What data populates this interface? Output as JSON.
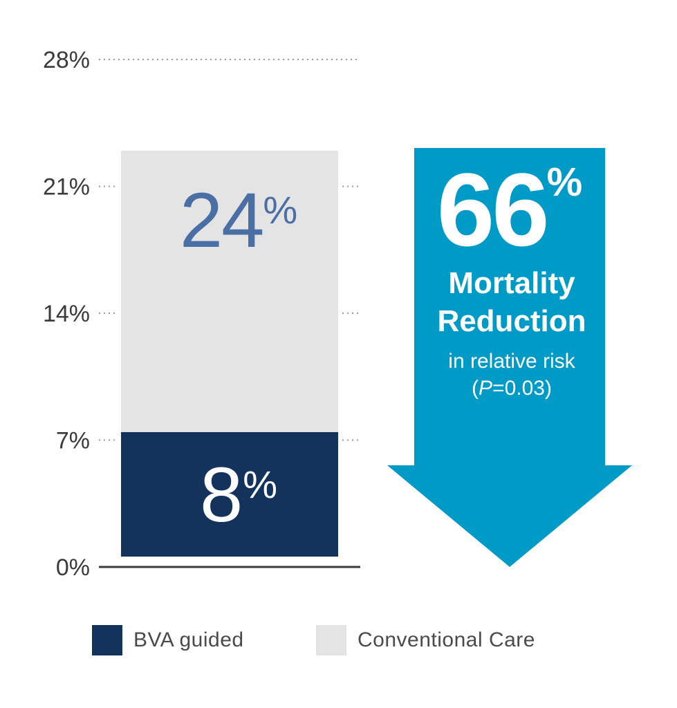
{
  "chart_data": {
    "type": "bar",
    "stacked": true,
    "yticks": [
      "0%",
      "7%",
      "14%",
      "21%",
      "28%"
    ],
    "ytick_values": [
      0,
      7,
      14,
      21,
      28
    ],
    "ylim": [
      0,
      28
    ],
    "grid": "dotted",
    "series": [
      {
        "name": "Conventional Care",
        "value": 24,
        "label_number": "24",
        "label_unit": "%",
        "color": "#e4e4e4",
        "label_color": "#4a6fa5"
      },
      {
        "name": "BVA guided",
        "value": 8,
        "label_number": "8",
        "label_unit": "%",
        "color": "#14335c",
        "label_color": "#ffffff"
      }
    ],
    "legend_position": "bottom"
  },
  "callout": {
    "number": "66",
    "unit": "%",
    "line1": "Mortality",
    "line2": "Reduction",
    "line3": "in relative risk",
    "pvalue_open": "(",
    "pvalue_italic": "P",
    "pvalue_rest": "=0.03)",
    "color": "#009ac7"
  },
  "legend": {
    "items": [
      {
        "label": "BVA guided",
        "color": "#14335c"
      },
      {
        "label": "Conventional Care",
        "color": "#e4e4e4"
      }
    ]
  }
}
